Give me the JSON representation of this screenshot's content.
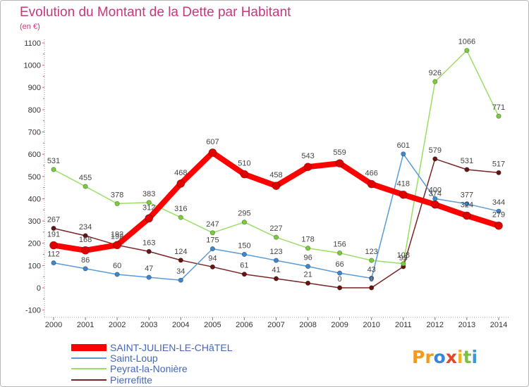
{
  "chart_data": {
    "type": "line",
    "title": "Evolution du Montant de la Dette par Habitant",
    "subtitle": "(en €)",
    "x": [
      "2000",
      "2001",
      "2002",
      "2003",
      "2004",
      "2005",
      "2006",
      "2007",
      "2008",
      "2009",
      "2010",
      "2011",
      "2012",
      "2013",
      "2014"
    ],
    "ylim": [
      -100,
      1100
    ],
    "yticks": [
      1100,
      1000,
      900,
      800,
      700,
      600,
      500,
      400,
      300,
      200,
      100,
      0,
      -100
    ],
    "grid": false,
    "legend_position": "bottom-left",
    "series": [
      {
        "name": "SAINT-JULIEN-LE-CHâTEL",
        "color": "#ff0000",
        "marker_color": "#e00000",
        "values": [
          191,
          168,
          192,
          312,
          468,
          607,
          510,
          458,
          543,
          559,
          466,
          418,
          374,
          324,
          279
        ]
      },
      {
        "name": "Saint-Loup",
        "color": "#5a9bd8",
        "marker_color": "#3f86cc",
        "values": [
          112,
          86,
          60,
          47,
          34,
          175,
          150,
          123,
          96,
          66,
          43,
          601,
          400,
          377,
          344
        ]
      },
      {
        "name": "Peyrat-la-Nonière",
        "color": "#9ade66",
        "marker_color": "#7ccc3a",
        "values": [
          531,
          455,
          378,
          383,
          316,
          247,
          295,
          227,
          178,
          156,
          123,
          108,
          926,
          1066,
          771
        ]
      },
      {
        "name": "Pierrefitte",
        "color": "#7a2424",
        "marker_color": "#661313",
        "values": [
          267,
          234,
          192,
          163,
          124,
          94,
          61,
          41,
          21,
          0,
          0,
          95,
          579,
          531,
          517
        ]
      }
    ]
  },
  "logo": "Proxiti",
  "logo_colors": [
    "#f29a1f",
    "#f29a1f",
    "#3a86d6",
    "#e2462b",
    "#f2b21f",
    "#7cc242",
    "#3a9ad9"
  ]
}
